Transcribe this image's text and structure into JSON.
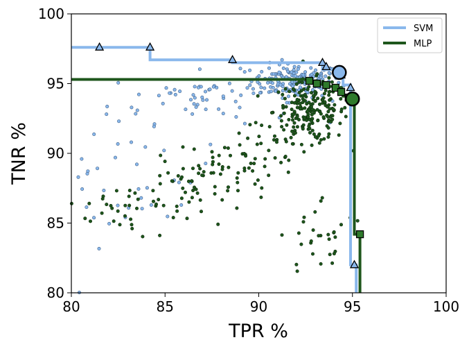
{
  "chart_data": {
    "type": "scatter",
    "xlabel": "TPR %",
    "ylabel": "TNR %",
    "xlim": [
      80,
      100
    ],
    "ylim": [
      80,
      100
    ],
    "x_ticks": [
      "80",
      "85",
      "90",
      "95",
      "100"
    ],
    "y_ticks": [
      "80",
      "85",
      "90",
      "95",
      "100"
    ],
    "legend_position": "top-right",
    "grid": false,
    "series": [
      {
        "name": "SVM",
        "color": "#8ab8ec",
        "pareto_front": [
          [
            80,
            97.6
          ],
          [
            84.2,
            97.6
          ],
          [
            84.2,
            96.7
          ],
          [
            88.6,
            96.7
          ],
          [
            88.6,
            96.5
          ],
          [
            93.4,
            96.5
          ],
          [
            93.4,
            96.0
          ],
          [
            94.3,
            96.0
          ],
          [
            94.3,
            95.8
          ],
          [
            94.5,
            95.8
          ],
          [
            94.5,
            94.9
          ],
          [
            94.9,
            94.9
          ],
          [
            94.9,
            82.0
          ],
          [
            95.2,
            82.0
          ],
          [
            95.2,
            80
          ]
        ],
        "pareto_markers": [
          [
            81.5,
            97.6
          ],
          [
            84.2,
            97.6
          ],
          [
            88.6,
            96.7
          ],
          [
            93.4,
            96.5
          ],
          [
            93.6,
            96.2
          ],
          [
            94.4,
            95.6
          ],
          [
            94.9,
            94.7
          ],
          [
            95.1,
            82.0
          ]
        ],
        "best": [
          94.3,
          95.8
        ]
      },
      {
        "name": "MLP",
        "color": "#1e561c",
        "pareto_front": [
          [
            80,
            95.3
          ],
          [
            92.7,
            95.3
          ],
          [
            92.7,
            95.2
          ],
          [
            93.1,
            95.2
          ],
          [
            93.1,
            95.0
          ],
          [
            93.6,
            94.9
          ],
          [
            93.6,
            94.8
          ],
          [
            94.0,
            94.8
          ],
          [
            94.0,
            94.6
          ],
          [
            94.5,
            94.6
          ],
          [
            94.5,
            94.1
          ],
          [
            94.9,
            94.1
          ],
          [
            94.9,
            93.9
          ],
          [
            95.1,
            93.9
          ],
          [
            95.1,
            84.2
          ],
          [
            95.4,
            84.2
          ],
          [
            95.4,
            80
          ]
        ],
        "pareto_markers": [
          [
            92.7,
            95.2
          ],
          [
            93.1,
            95.0
          ],
          [
            93.6,
            94.9
          ],
          [
            94.1,
            94.7
          ],
          [
            94.4,
            94.4
          ],
          [
            94.8,
            94.0
          ],
          [
            95.0,
            93.9
          ],
          [
            95.4,
            84.2
          ]
        ],
        "best": [
          95.0,
          93.9
        ]
      }
    ]
  }
}
